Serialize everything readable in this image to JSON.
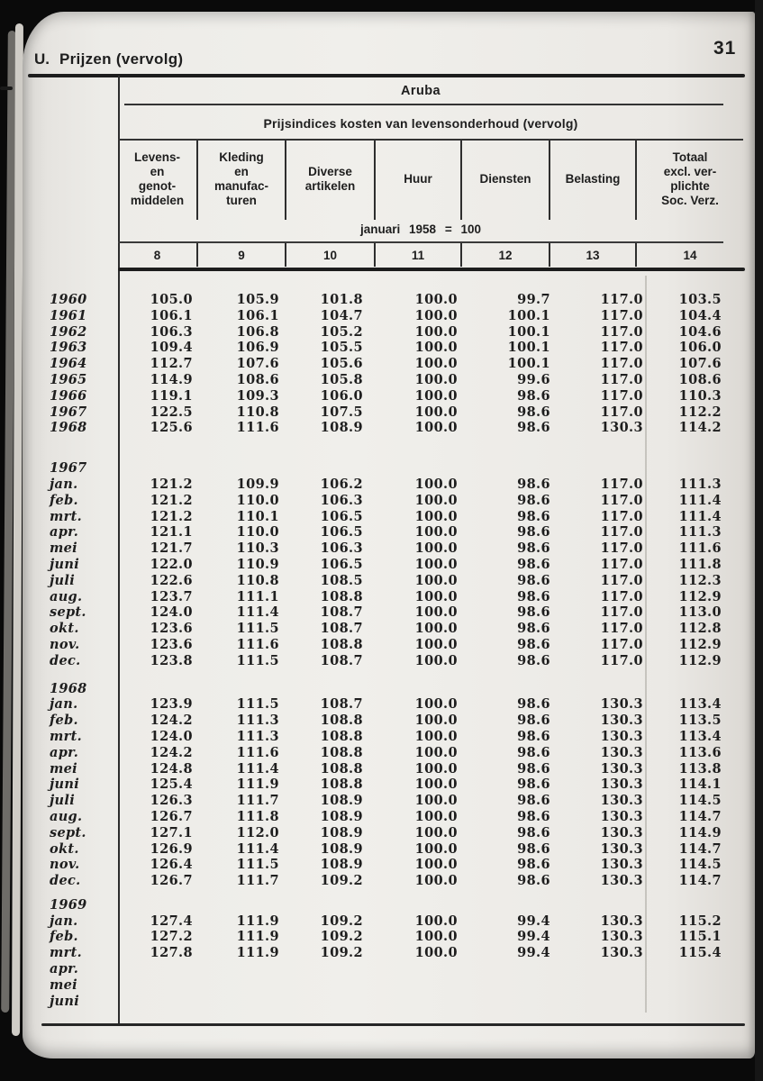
{
  "header": {
    "section_letter": "U.",
    "title": "Prijzen (vervolg)",
    "page_number": "31"
  },
  "table": {
    "region": "Aruba",
    "subtitle": "Prijsindices kosten van levensonderhoud (vervolg)",
    "base_note": "januari 1958 = 100",
    "columns": [
      {
        "label": "Levens-\nen\ngenot-\nmiddelen",
        "number": "8"
      },
      {
        "label": "Kleding\nen\nmanufac-\nturen",
        "number": "9"
      },
      {
        "label": "Diverse\nartikelen",
        "number": "10"
      },
      {
        "label": "Huur",
        "number": "11"
      },
      {
        "label": "Diensten",
        "number": "12"
      },
      {
        "label": "Belasting",
        "number": "13"
      },
      {
        "label": "Totaal\nexcl. ver-\nplichte\nSoc. Verz.",
        "number": "14"
      }
    ],
    "sections": [
      {
        "year": null,
        "rows": [
          [
            "1960",
            "105.0",
            "105.9",
            "101.8",
            "100.0",
            "99.7",
            "117.0",
            "103.5"
          ],
          [
            "1961",
            "106.1",
            "106.1",
            "104.7",
            "100.0",
            "100.1",
            "117.0",
            "104.4"
          ],
          [
            "1962",
            "106.3",
            "106.8",
            "105.2",
            "100.0",
            "100.1",
            "117.0",
            "104.6"
          ],
          [
            "1963",
            "109.4",
            "106.9",
            "105.5",
            "100.0",
            "100.1",
            "117.0",
            "106.0"
          ],
          [
            "1964",
            "112.7",
            "107.6",
            "105.6",
            "100.0",
            "100.1",
            "117.0",
            "107.6"
          ],
          [
            "1965",
            "114.9",
            "108.6",
            "105.8",
            "100.0",
            "99.6",
            "117.0",
            "108.6"
          ],
          [
            "1966",
            "119.1",
            "109.3",
            "106.0",
            "100.0",
            "98.6",
            "117.0",
            "110.3"
          ],
          [
            "1967",
            "122.5",
            "110.8",
            "107.5",
            "100.0",
            "98.6",
            "117.0",
            "112.2"
          ],
          [
            "1968",
            "125.6",
            "111.6",
            "108.9",
            "100.0",
            "98.6",
            "130.3",
            "114.2"
          ]
        ]
      },
      {
        "year": "1967",
        "rows": [
          [
            "jan.",
            "121.2",
            "109.9",
            "106.2",
            "100.0",
            "98.6",
            "117.0",
            "111.3"
          ],
          [
            "feb.",
            "121.2",
            "110.0",
            "106.3",
            "100.0",
            "98.6",
            "117.0",
            "111.4"
          ],
          [
            "mrt.",
            "121.2",
            "110.1",
            "106.5",
            "100.0",
            "98.6",
            "117.0",
            "111.4"
          ],
          [
            "apr.",
            "121.1",
            "110.0",
            "106.5",
            "100.0",
            "98.6",
            "117.0",
            "111.3"
          ],
          [
            "mei",
            "121.7",
            "110.3",
            "106.3",
            "100.0",
            "98.6",
            "117.0",
            "111.6"
          ],
          [
            "juni",
            "122.0",
            "110.9",
            "106.5",
            "100.0",
            "98.6",
            "117.0",
            "111.8"
          ],
          [
            "juli",
            "122.6",
            "110.8",
            "108.5",
            "100.0",
            "98.6",
            "117.0",
            "112.3"
          ],
          [
            "aug.",
            "123.7",
            "111.1",
            "108.8",
            "100.0",
            "98.6",
            "117.0",
            "112.9"
          ],
          [
            "sept.",
            "124.0",
            "111.4",
            "108.7",
            "100.0",
            "98.6",
            "117.0",
            "113.0"
          ],
          [
            "okt.",
            "123.6",
            "111.5",
            "108.7",
            "100.0",
            "98.6",
            "117.0",
            "112.8"
          ],
          [
            "nov.",
            "123.6",
            "111.6",
            "108.8",
            "100.0",
            "98.6",
            "117.0",
            "112.9"
          ],
          [
            "dec.",
            "123.8",
            "111.5",
            "108.7",
            "100.0",
            "98.6",
            "117.0",
            "112.9"
          ]
        ]
      },
      {
        "year": "1968",
        "rows": [
          [
            "jan.",
            "123.9",
            "111.5",
            "108.7",
            "100.0",
            "98.6",
            "130.3",
            "113.4"
          ],
          [
            "feb.",
            "124.2",
            "111.3",
            "108.8",
            "100.0",
            "98.6",
            "130.3",
            "113.5"
          ],
          [
            "mrt.",
            "124.0",
            "111.3",
            "108.8",
            "100.0",
            "98.6",
            "130.3",
            "113.4"
          ],
          [
            "apr.",
            "124.2",
            "111.6",
            "108.8",
            "100.0",
            "98.6",
            "130.3",
            "113.6"
          ],
          [
            "mei",
            "124.8",
            "111.4",
            "108.8",
            "100.0",
            "98.6",
            "130.3",
            "113.8"
          ],
          [
            "juni",
            "125.4",
            "111.9",
            "108.8",
            "100.0",
            "98.6",
            "130.3",
            "114.1"
          ],
          [
            "juli",
            "126.3",
            "111.7",
            "108.9",
            "100.0",
            "98.6",
            "130.3",
            "114.5"
          ],
          [
            "aug.",
            "126.7",
            "111.8",
            "108.9",
            "100.0",
            "98.6",
            "130.3",
            "114.7"
          ],
          [
            "sept.",
            "127.1",
            "112.0",
            "108.9",
            "100.0",
            "98.6",
            "130.3",
            "114.9"
          ],
          [
            "okt.",
            "126.9",
            "111.4",
            "108.9",
            "100.0",
            "98.6",
            "130.3",
            "114.7"
          ],
          [
            "nov.",
            "126.4",
            "111.5",
            "108.9",
            "100.0",
            "98.6",
            "130.3",
            "114.5"
          ],
          [
            "dec.",
            "126.7",
            "111.7",
            "109.2",
            "100.0",
            "98.6",
            "130.3",
            "114.7"
          ]
        ]
      },
      {
        "year": "1969",
        "rows": [
          [
            "jan.",
            "127.4",
            "111.9",
            "109.2",
            "100.0",
            "99.4",
            "130.3",
            "115.2"
          ],
          [
            "feb.",
            "127.2",
            "111.9",
            "109.2",
            "100.0",
            "99.4",
            "130.3",
            "115.1"
          ],
          [
            "mrt.",
            "127.8",
            "111.9",
            "109.2",
            "100.0",
            "99.4",
            "130.3",
            "115.4"
          ],
          [
            "apr."
          ],
          [
            "mei"
          ],
          [
            "juni"
          ]
        ]
      }
    ]
  },
  "colors": {
    "ink": "#1e1e1e",
    "paper": "#efeeea",
    "black_frame": "#0a0a0a"
  }
}
